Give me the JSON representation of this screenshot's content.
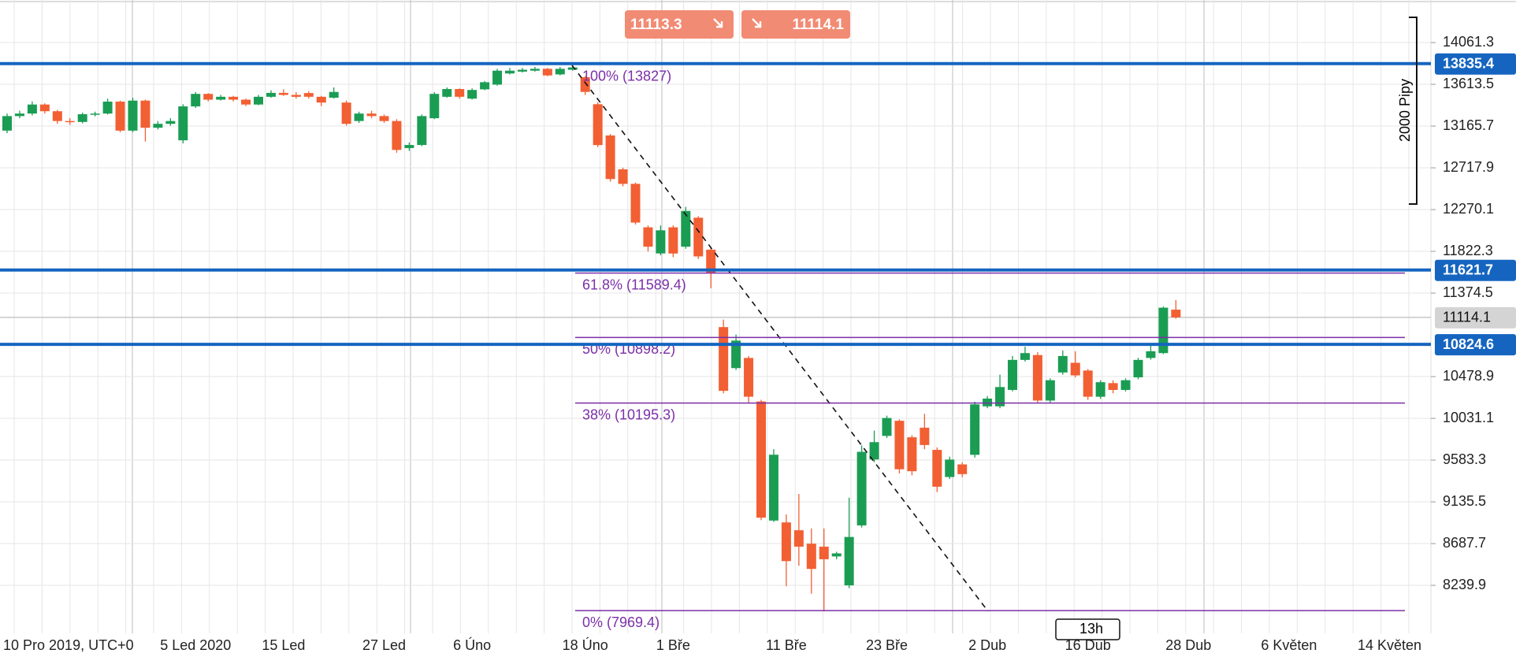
{
  "toolbar": {
    "sell": 11113.3,
    "buy": 11114.1
  },
  "range_tool": {
    "label": "2000 Pipy"
  },
  "crosshair_label": "13h",
  "chart_data": {
    "type": "candlestick",
    "up_color": "#1a9d53",
    "down_color": "#f25f33",
    "line_color": "#1565c0",
    "fib_color": "#7b2fa8",
    "ylim": [
      7725,
      14518
    ],
    "yticks": [
      14061.3,
      13613.5,
      13165.7,
      12717.9,
      12270.1,
      11822.3,
      11374.5,
      10478.9,
      10031.1,
      9583.3,
      9135.5,
      8687.7,
      8239.9
    ],
    "grid": true,
    "price_lines": [
      13835.4,
      11621.7,
      10824.6
    ],
    "current_price": 11114.1,
    "fib_levels": [
      {
        "label": "100% (13827)",
        "value": 13827
      },
      {
        "label": "61.8% (11589.4)",
        "value": 11589.4
      },
      {
        "label": "50% (10898.2)",
        "value": 10898.2
      },
      {
        "label": "38% (10195.3)",
        "value": 10195.3
      },
      {
        "label": "0% (7969.4)",
        "value": 7969.4
      }
    ],
    "categories": [
      "10 Pro 2019, UTC+0",
      null,
      null,
      null,
      null,
      null,
      null,
      null,
      null,
      null,
      null,
      null,
      null,
      null,
      null,
      "5 Led 2020",
      null,
      null,
      null,
      null,
      null,
      null,
      "15 Led",
      null,
      null,
      null,
      null,
      null,
      null,
      null,
      "27 Led",
      null,
      null,
      null,
      null,
      null,
      null,
      "6 Úno",
      null,
      null,
      null,
      null,
      null,
      null,
      null,
      null,
      "18 Úno",
      null,
      null,
      null,
      null,
      null,
      null,
      "1 Bře",
      null,
      null,
      null,
      null,
      null,
      null,
      null,
      null,
      "11 Bře",
      null,
      null,
      null,
      null,
      null,
      null,
      null,
      "23 Bře",
      null,
      null,
      null,
      null,
      null,
      null,
      null,
      "2 Dub",
      null,
      null,
      null,
      null,
      null,
      null,
      null,
      "16 Dub",
      null,
      null,
      null,
      null,
      null,
      null,
      null,
      "28 Dub",
      null,
      null,
      null,
      null,
      null,
      null,
      null,
      "6 Květen",
      null,
      null,
      null,
      null,
      null,
      null,
      null,
      "14 Květen",
      null,
      null
    ],
    "open": [
      13117,
      13273,
      13300,
      13397,
      13325,
      13220,
      13210,
      13293,
      13300,
      13428,
      13117,
      13439,
      13148,
      13190,
      13013,
      13377,
      13511,
      13449,
      13480,
      13449,
      13397,
      13480,
      13522,
      13500,
      13520,
      13480,
      13470,
      13418,
      13220,
      13300,
      13273,
      13220,
      12930,
      12963,
      13250,
      13480,
      13563,
      13460,
      13560,
      13610,
      13730,
      13750,
      13760,
      13780,
      13720,
      13770,
      13690,
      13400,
      13065,
      12702,
      12546,
      12080,
      11800,
      12080,
      11872,
      12183,
      11840,
      11010,
      10570,
      10679,
      10212,
      8935,
      8915,
      8831,
      8687,
      8655,
      8550,
      8240,
      8883,
      9590,
      9843,
      10005,
      9828,
      9931,
      9693,
      9402,
      9537,
      9640,
      10160,
      10160,
      10336,
      10658,
      10710,
      10222,
      10523,
      10627,
      10544,
      10263,
      10409,
      10336,
      10471,
      10679,
      10731,
      11197,
      null,
      null,
      null,
      null,
      null,
      null,
      null,
      null,
      null,
      null,
      null,
      null,
      null,
      null,
      null,
      null,
      null,
      null,
      null
    ],
    "high": [
      13300,
      13330,
      13430,
      13410,
      13340,
      13250,
      13310,
      13320,
      13460,
      13440,
      13470,
      13450,
      13220,
      13250,
      13400,
      13530,
      13520,
      13500,
      13490,
      13460,
      13500,
      13550,
      13560,
      13530,
      13540,
      13490,
      13580,
      13440,
      13320,
      13330,
      13290,
      13240,
      12990,
      13290,
      13530,
      13580,
      13570,
      13570,
      13650,
      13780,
      13790,
      13790,
      13800,
      13790,
      13800,
      13833,
      13700,
      13420,
      13080,
      12720,
      12560,
      12100,
      12100,
      12100,
      12300,
      12200,
      11860,
      11090,
      10930,
      10700,
      10230,
      9700,
      9000,
      9220,
      8850,
      8850,
      8600,
      9180,
      9740,
      9900,
      10060,
      10020,
      9850,
      10080,
      9720,
      9620,
      9560,
      10210,
      10270,
      10500,
      10700,
      10800,
      10740,
      10460,
      10760,
      10750,
      10560,
      10440,
      10440,
      10460,
      10680,
      10820,
      11230,
      11300,
      null,
      null,
      null,
      null,
      null,
      null,
      null,
      null,
      null,
      null,
      null,
      null,
      null,
      null,
      null,
      null,
      null,
      null,
      null
    ],
    "low": [
      13090,
      13250,
      13280,
      13300,
      13190,
      13180,
      13195,
      13270,
      13290,
      13100,
      13100,
      13000,
      13130,
      13170,
      12980,
      13360,
      13430,
      13440,
      13430,
      13380,
      13390,
      13470,
      13490,
      13460,
      13460,
      13380,
      13460,
      13170,
      13200,
      13250,
      13200,
      12880,
      12900,
      12950,
      13240,
      13470,
      13460,
      13450,
      13550,
      13600,
      13720,
      13740,
      13750,
      13700,
      13710,
      13760,
      13500,
      12940,
      12570,
      12520,
      12110,
      11820,
      11780,
      11760,
      11850,
      11740,
      11426,
      10300,
      10550,
      10200,
      8940,
      8920,
      8230,
      8450,
      8150,
      7960,
      8520,
      8210,
      8860,
      9560,
      9820,
      9440,
      9420,
      9700,
      9240,
      9380,
      9400,
      9610,
      10140,
      10140,
      10320,
      10640,
      10200,
      10200,
      10500,
      10470,
      10230,
      10240,
      10300,
      10320,
      10450,
      10660,
      10720,
      11100,
      null,
      null,
      null,
      null,
      null,
      null,
      null,
      null,
      null,
      null,
      null,
      null,
      null,
      null,
      null,
      null,
      null,
      null,
      null
    ],
    "close": [
      13273,
      13300,
      13397,
      13325,
      13220,
      13210,
      13293,
      13300,
      13428,
      13117,
      13439,
      13148,
      13190,
      13220,
      13377,
      13511,
      13449,
      13480,
      13449,
      13397,
      13480,
      13522,
      13500,
      13480,
      13480,
      13418,
      13532,
      13190,
      13300,
      13273,
      13220,
      12910,
      12963,
      13273,
      13511,
      13563,
      13480,
      13553,
      13636,
      13760,
      13760,
      13770,
      13780,
      13709,
      13780,
      13795,
      13532,
      12962,
      12598,
      12546,
      12131,
      11872,
      12048,
      11799,
      12256,
      11768,
      11592,
      10326,
      10865,
      10263,
      8966,
      9641,
      8500,
      8655,
      8416,
      8520,
      8583,
      8759,
      9672,
      9776,
      10035,
      9485,
      9464,
      9745,
      9298,
      9589,
      9433,
      10181,
      10243,
      10367,
      10658,
      10731,
      10222,
      10440,
      10700,
      10492,
      10263,
      10419,
      10336,
      10440,
      10658,
      10751,
      11218,
      11114.1,
      null,
      null,
      null,
      null,
      null,
      null,
      null,
      null,
      null,
      null,
      null,
      null,
      null,
      null,
      null,
      null,
      null,
      null,
      null
    ]
  }
}
